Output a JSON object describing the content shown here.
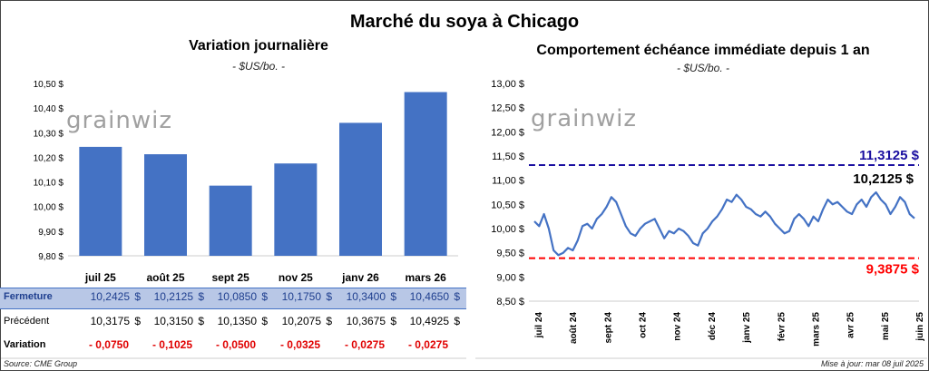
{
  "title": "Marché du soya à Chicago",
  "left_panel": {
    "title": "Variation journalière",
    "subtitle": "- $US/bo. -",
    "watermark": "grainwiz"
  },
  "right_panel": {
    "title": "Comportement échéance immédiate depuis 1 an",
    "subtitle": "- $US/bo. -",
    "watermark": "grainwiz"
  },
  "table": {
    "row_labels": {
      "close": "Fermeture",
      "previous": "Précédent",
      "variation": "Variation"
    },
    "close": [
      "10,2425",
      "10,2125",
      "10,0850",
      "10,1750",
      "10,3400",
      "10,4650"
    ],
    "previous": [
      "10,3175",
      "10,3150",
      "10,1350",
      "10,2075",
      "10,3675",
      "10,4925"
    ],
    "variation": [
      "- 0,0750",
      "- 0,1025",
      "- 0,0500",
      "- 0,0325",
      "- 0,0275",
      "- 0,0275"
    ],
    "currency": "$"
  },
  "footer": {
    "source": "Source: CME Group",
    "updated": "Mise à jour: mar 08 juil 2025"
  },
  "chart_data": [
    {
      "type": "bar",
      "title": "Variation journalière",
      "subtitle": "- $US/bo. -",
      "categories": [
        "juil 25",
        "août 25",
        "sept 25",
        "nov 25",
        "janv 26",
        "mars 26"
      ],
      "values": [
        10.2425,
        10.2125,
        10.085,
        10.175,
        10.34,
        10.465
      ],
      "ylim": [
        9.8,
        10.5
      ],
      "yticks": [
        "9,80 $",
        "9,90 $",
        "10,00 $",
        "10,10 $",
        "10,20 $",
        "10,30 $",
        "10,40 $",
        "10,50 $"
      ],
      "color": "#4472c4"
    },
    {
      "type": "line",
      "title": "Comportement échéance immédiate depuis 1 an",
      "subtitle": "- $US/bo. -",
      "ylim": [
        8.5,
        13.0
      ],
      "yticks": [
        "8,50 $",
        "9,00 $",
        "9,50 $",
        "10,00 $",
        "10,50 $",
        "11,00 $",
        "11,50 $",
        "12,00 $",
        "12,50 $",
        "13,00 $"
      ],
      "xticks": [
        "juil 24",
        "août 24",
        "sept 24",
        "oct 24",
        "nov 24",
        "déc 24",
        "janv 25",
        "févr 25",
        "mars 25",
        "avr 25",
        "mai 25",
        "juin 25"
      ],
      "color": "#4472c4",
      "values": [
        10.15,
        10.05,
        10.3,
        10.0,
        9.55,
        9.45,
        9.5,
        9.6,
        9.55,
        9.75,
        10.05,
        10.1,
        10.0,
        10.2,
        10.3,
        10.45,
        10.65,
        10.55,
        10.3,
        10.05,
        9.9,
        9.85,
        10.0,
        10.1,
        10.15,
        10.2,
        10.0,
        9.8,
        9.95,
        9.9,
        10.0,
        9.95,
        9.85,
        9.7,
        9.65,
        9.9,
        10.0,
        10.15,
        10.25,
        10.4,
        10.6,
        10.55,
        10.7,
        10.6,
        10.45,
        10.4,
        10.3,
        10.25,
        10.35,
        10.25,
        10.1,
        10.0,
        9.9,
        9.95,
        10.2,
        10.3,
        10.2,
        10.05,
        10.25,
        10.15,
        10.4,
        10.6,
        10.5,
        10.55,
        10.45,
        10.35,
        10.3,
        10.5,
        10.6,
        10.45,
        10.65,
        10.75,
        10.6,
        10.5,
        10.3,
        10.45,
        10.65,
        10.55,
        10.3,
        10.2125
      ],
      "reference_lines": [
        {
          "label": "11,3125 $",
          "value": 11.3125,
          "color": "#1a0fa0"
        },
        {
          "label": "9,3875 $",
          "value": 9.3875,
          "color": "#ff0000"
        }
      ],
      "last_label": "10,2125 $"
    }
  ]
}
